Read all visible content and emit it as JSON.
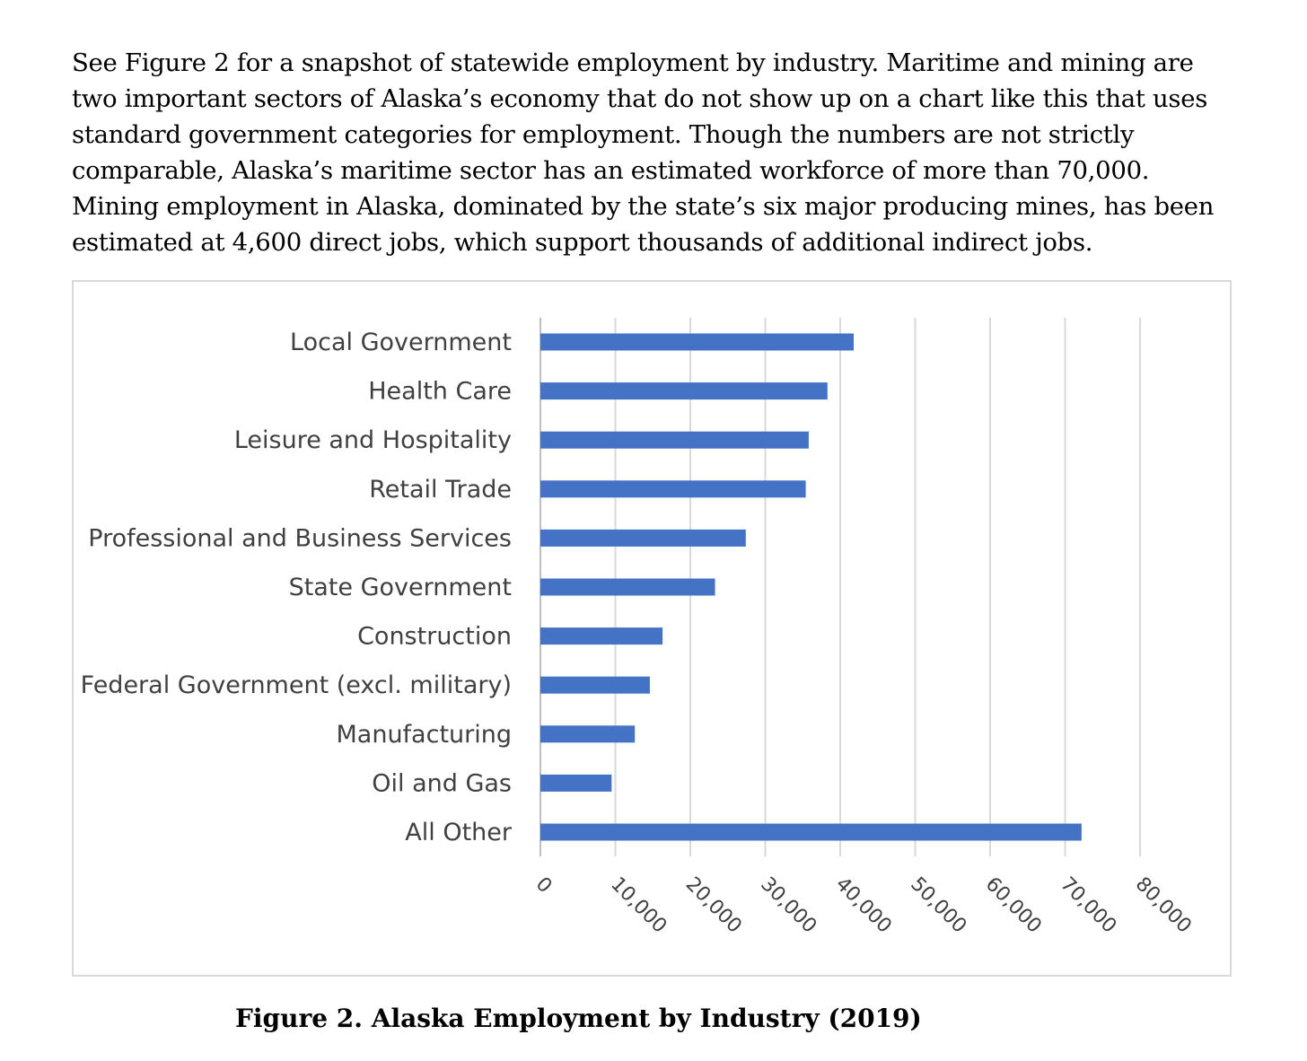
{
  "paragraph": "See Figure 2 for a snapshot of statewide employment by industry. Maritime and mining are two important sectors of Alaska’s economy that do not show up on a chart like this that uses standard government categories for employment. Though the numbers are not strictly comparable, Alaska’s maritime sector has an estimated workforce of more than 70,000. Mining employment in Alaska, dominated by the state’s six major producing mines, has been estimated at 4,600 direct jobs, which support thousands of additional indirect jobs.",
  "caption": "Figure 2. Alaska Employment by Industry (2019)",
  "chart_data": {
    "type": "bar",
    "orientation": "horizontal",
    "title": "Figure 2. Alaska Employment by Industry (2019)",
    "categories": [
      "Local Government",
      "Health Care",
      "Leisure and Hospitality",
      "Retail Trade",
      "Professional and Business Services",
      "State Government",
      "Construction",
      "Federal Government (excl. military)",
      "Manufacturing",
      "Oil and Gas",
      "All Other"
    ],
    "values": [
      41800,
      38300,
      35800,
      35400,
      27400,
      23300,
      16300,
      14600,
      12600,
      9500,
      72200
    ],
    "xlim": [
      0,
      80000
    ],
    "xticks": [
      0,
      10000,
      20000,
      30000,
      40000,
      50000,
      60000,
      70000,
      80000
    ],
    "tick_labels": [
      "0",
      "10,000",
      "20,000",
      "30,000",
      "40,000",
      "50,000",
      "60,000",
      "70,000",
      "80,000"
    ],
    "grid": true,
    "bar_color": "#4472c4",
    "grid_color": "#d9d9d9"
  }
}
